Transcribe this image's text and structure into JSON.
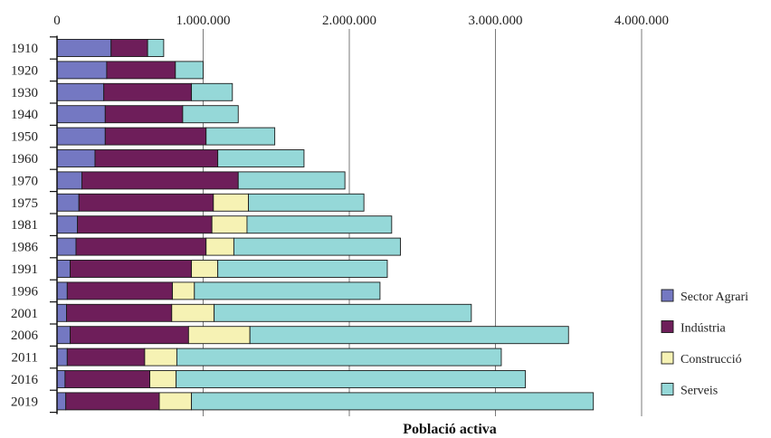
{
  "chart_data": {
    "type": "bar",
    "orientation": "horizontal",
    "stacked": true,
    "categories": [
      "1910",
      "1920",
      "1930",
      "1940",
      "1950",
      "1960",
      "1970",
      "1975",
      "1981",
      "1986",
      "1991",
      "1996",
      "2001",
      "2006",
      "2011",
      "2016",
      "2019"
    ],
    "series": [
      {
        "name": "Sector Agrari",
        "color": "#7478c2",
        "values": [
          370000,
          340000,
          320000,
          330000,
          330000,
          260000,
          170000,
          150000,
          140000,
          130000,
          90000,
          70000,
          65000,
          90000,
          70000,
          55000,
          60000
        ]
      },
      {
        "name": "Indústria",
        "color": "#6e1e5a",
        "values": [
          250000,
          470000,
          600000,
          530000,
          690000,
          840000,
          1070000,
          920000,
          920000,
          890000,
          830000,
          720000,
          720000,
          810000,
          530000,
          580000,
          640000
        ]
      },
      {
        "name": "Construcció",
        "color": "#f6f2b4",
        "values": [
          0,
          0,
          0,
          0,
          0,
          0,
          0,
          240000,
          240000,
          190000,
          180000,
          150000,
          290000,
          420000,
          220000,
          180000,
          220000
        ]
      },
      {
        "name": "Serveis",
        "color": "#95d8d8",
        "values": [
          110000,
          190000,
          280000,
          380000,
          470000,
          590000,
          730000,
          790000,
          990000,
          1140000,
          1160000,
          1270000,
          1760000,
          2180000,
          2220000,
          2390000,
          2750000
        ]
      }
    ],
    "xlabel": "Població activa",
    "ylabel": "",
    "xlim": [
      0,
      4000000
    ],
    "xticks": [
      0,
      1000000,
      2000000,
      3000000,
      4000000
    ],
    "xtick_labels": [
      "0",
      "1.000.000",
      "2.000.000",
      "3.000.000",
      "4.000.000"
    ],
    "grid": "vertical",
    "legend_position": "right"
  }
}
